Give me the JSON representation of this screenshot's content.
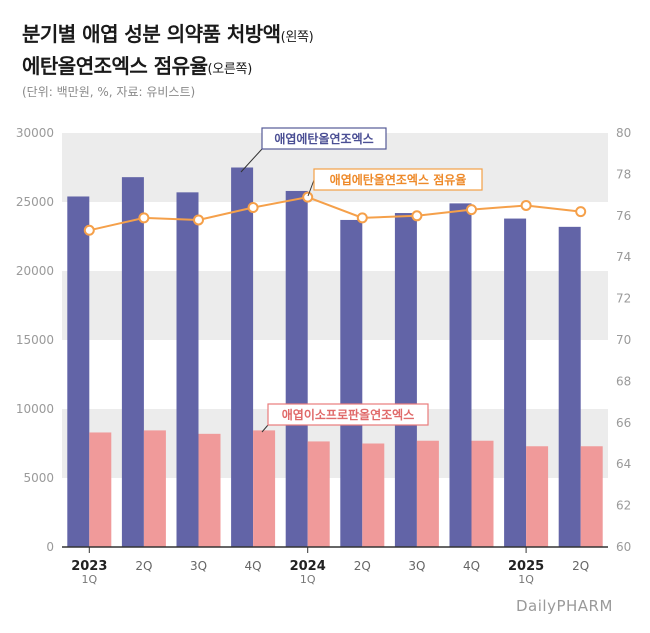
{
  "title": {
    "line1": "분기별 애엽 성분 의약품 처방액",
    "line1_note": "(왼쪽)",
    "line2": "에탄올연조엑스 점유율",
    "line2_note": "(오른쪽)"
  },
  "unit_note": "(단위: 백만원, %, 자료: 유비스트)",
  "logo": "DailyPHARM",
  "colors": {
    "bar_primary": "#6264a7",
    "bar_secondary": "#f09a9a",
    "line": "#f5a04a",
    "label_primary_border": "#555a96",
    "label_secondary_border": "#e97c7c",
    "label_line_border": "#f3a047",
    "label_primary_text": "#4b4f94",
    "label_secondary_text": "#e06a6a",
    "label_line_text": "#ee8a2a"
  },
  "chart_data": {
    "type": "bar",
    "categories": [
      "2023 1Q",
      "2Q",
      "3Q",
      "4Q",
      "2024 1Q",
      "2Q",
      "3Q",
      "4Q",
      "2025 1Q",
      "2Q"
    ],
    "x_tick_labels": [
      {
        "main": "2023",
        "sub": "1Q",
        "bold": true
      },
      {
        "main": "2Q",
        "sub": "",
        "bold": false
      },
      {
        "main": "3Q",
        "sub": "",
        "bold": false
      },
      {
        "main": "4Q",
        "sub": "",
        "bold": false
      },
      {
        "main": "2024",
        "sub": "1Q",
        "bold": true
      },
      {
        "main": "2Q",
        "sub": "",
        "bold": false
      },
      {
        "main": "3Q",
        "sub": "",
        "bold": false
      },
      {
        "main": "4Q",
        "sub": "",
        "bold": false
      },
      {
        "main": "2025",
        "sub": "1Q",
        "bold": true
      },
      {
        "main": "2Q",
        "sub": "",
        "bold": false
      }
    ],
    "series": [
      {
        "name": "애엽에탄올연조엑스",
        "type": "bar",
        "axis": "left",
        "values": [
          25400,
          26800,
          25700,
          27500,
          25800,
          23700,
          24200,
          24900,
          23800,
          23200
        ]
      },
      {
        "name": "애엽이소프로판올연조엑스",
        "type": "bar",
        "axis": "left",
        "values": [
          8300,
          8450,
          8200,
          8450,
          7650,
          7500,
          7700,
          7700,
          7300,
          7300
        ]
      },
      {
        "name": "애엽에탄올연조엑스 점유율",
        "type": "line",
        "axis": "right",
        "values": [
          75.3,
          75.9,
          75.8,
          76.4,
          76.9,
          75.9,
          76.0,
          76.3,
          76.5,
          76.2
        ]
      }
    ],
    "y_left": {
      "min": 0,
      "max": 30000,
      "ticks": [
        "0",
        "5000",
        "10000",
        "15000",
        "20000",
        "25000",
        "30000"
      ]
    },
    "y_right": {
      "min": 60,
      "max": 80,
      "ticks": [
        "60",
        "62",
        "64",
        "66",
        "68",
        "70",
        "72",
        "74",
        "76",
        "78",
        "80"
      ]
    },
    "grid": "alternating horizontal bands"
  }
}
